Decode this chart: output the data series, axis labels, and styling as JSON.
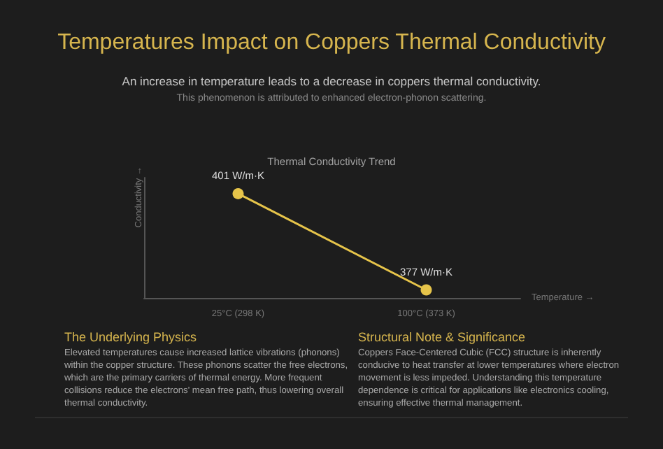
{
  "chart_data": {
    "type": "line",
    "title": "Temperatures Impact on Coppers Thermal Conductivity",
    "subtitle": "An increase in temperature leads to a decrease in coppers thermal conductivity.",
    "annotations": [
      "This phenomenon is attributed to enhanced electron-phonon scattering.",
      "Thermal Conductivity Trend",
      "The Underlying Physics",
      "Elevated temperatures cause increased lattice vibrations (phonons) within the copper structure. These phonons scatter the free electrons, which are the primary carriers of thermal energy. More frequent collisions reduce the electrons' mean free path, thus lowering overall thermal conductivity.",
      "Structural Note & Significance",
      "Coppers Face-Centered Cubic (FCC) structure is inherently conducive to heat transfer at lower temperatures where electron movement is less impeded. Understanding this temperature dependence is critical for applications like electronics cooling, ensuring effective thermal management."
    ],
    "xlabel": "Temperature →",
    "ylabel": "Conductivity →",
    "categories": [
      "25°C (298 K)",
      "100°C (373 K)"
    ],
    "series": [
      {
        "color": "#e6c44a",
        "values": [
          401,
          377
        ],
        "value_labels": [
          "401 W/m·K",
          "377 W/m·K"
        ]
      }
    ],
    "marker": "circle",
    "line_style": "solid",
    "grid": false,
    "tick_labels": "x"
  }
}
